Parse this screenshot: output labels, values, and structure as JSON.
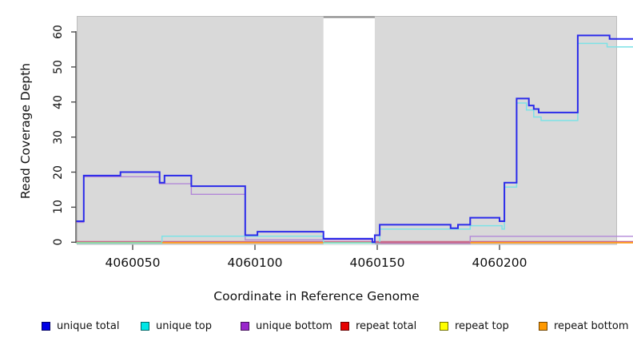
{
  "chart_data": {
    "type": "line",
    "subtype": "step",
    "title": "",
    "xlabel": "Coordinate in Reference Genome",
    "ylabel": "Read Coverage Depth",
    "x_ticks": [
      4060050,
      4060100,
      4060150,
      4060200
    ],
    "y_ticks": [
      0,
      10,
      20,
      30,
      40,
      50,
      60
    ],
    "x_range": [
      4060027,
      4060255
    ],
    "ylim": [
      0,
      64
    ],
    "grid": false,
    "plot_bg_color": "#d9d9d9",
    "gap_region": {
      "from": 4060128,
      "to": 4060149,
      "fill": "#ffffff",
      "top_border": "#8c8c8c"
    },
    "series": [
      {
        "name": "unique total",
        "color": "#2b2bea",
        "width": 2,
        "steps": [
          [
            4060027,
            6
          ],
          [
            4060030,
            19
          ],
          [
            4060045,
            20
          ],
          [
            4060061,
            17
          ],
          [
            4060063,
            19
          ],
          [
            4060074,
            16
          ],
          [
            4060096,
            2
          ],
          [
            4060101,
            3
          ],
          [
            4060128,
            1
          ],
          [
            4060148,
            0
          ],
          [
            4060149,
            2
          ],
          [
            4060151,
            5
          ],
          [
            4060180,
            4
          ],
          [
            4060183,
            5
          ],
          [
            4060188,
            7
          ],
          [
            4060200,
            6
          ],
          [
            4060202,
            17
          ],
          [
            4060207,
            41
          ],
          [
            4060212,
            39
          ],
          [
            4060214,
            38
          ],
          [
            4060216,
            37
          ],
          [
            4060232,
            59
          ],
          [
            4060245,
            58
          ]
        ],
        "end": 4060255
      },
      {
        "name": "unique top",
        "color": "#7de2e6",
        "width": 1.5,
        "steps": [
          [
            4060027,
            0
          ],
          [
            4060062,
            2
          ],
          [
            4060128,
            0
          ],
          [
            4060151,
            4
          ],
          [
            4060188,
            5
          ],
          [
            4060201,
            4
          ],
          [
            4060202,
            16
          ],
          [
            4060207,
            40
          ],
          [
            4060211,
            38
          ],
          [
            4060214,
            36
          ],
          [
            4060217,
            35
          ],
          [
            4060232,
            57
          ],
          [
            4060244,
            56
          ]
        ],
        "end": 4060255
      },
      {
        "name": "unique bottom",
        "color": "#b287d8",
        "width": 1.4,
        "steps": [
          [
            4060027,
            6
          ],
          [
            4060030,
            19
          ],
          [
            4060061,
            17
          ],
          [
            4060074,
            14
          ],
          [
            4060096,
            1
          ],
          [
            4060148,
            0
          ],
          [
            4060188,
            2
          ]
        ],
        "end": 4060255
      },
      {
        "name": "repeat total",
        "color": "#c96a8a",
        "width": 1.4,
        "steps": [
          [
            4060027,
            0
          ]
        ],
        "end": 4060255
      },
      {
        "name": "repeat top",
        "color": "#e8e800",
        "width": 1.4,
        "steps": [
          [
            4060027,
            0
          ]
        ],
        "end": 4060255
      },
      {
        "name": "repeat bottom",
        "color": "#ff9a1f",
        "width": 1.6,
        "steps": [
          [
            4060027,
            0
          ]
        ],
        "end": 4060255
      }
    ],
    "baseline_segments": [
      {
        "from": 4060027,
        "to": 4060062,
        "color": "#94d494",
        "note": "unique top + repeat top overlap at 0"
      },
      {
        "from": 4060062,
        "to": 4060128,
        "color": "#ff9a1f",
        "note": "repeat bottom"
      },
      {
        "from": 4060128,
        "to": 4060149,
        "color": "#8bd4ae",
        "note": "overlap at 0 inside gap"
      },
      {
        "from": 4060149,
        "to": 4060188,
        "color": "#c96a8a",
        "note": "repeat total"
      },
      {
        "from": 4060188,
        "to": 4060255,
        "color": "#ff9a1f",
        "note": "repeat bottom"
      }
    ],
    "legend": {
      "position": "bottom",
      "items": [
        {
          "label": "unique total",
          "color": "#0000e6"
        },
        {
          "label": "unique top",
          "color": "#00e6e6"
        },
        {
          "label": "unique bottom",
          "color": "#9926cc"
        },
        {
          "label": "repeat total",
          "color": "#e60000"
        },
        {
          "label": "repeat top",
          "color": "#ffff00"
        },
        {
          "label": "repeat bottom",
          "color": "#ff9900"
        }
      ]
    }
  }
}
